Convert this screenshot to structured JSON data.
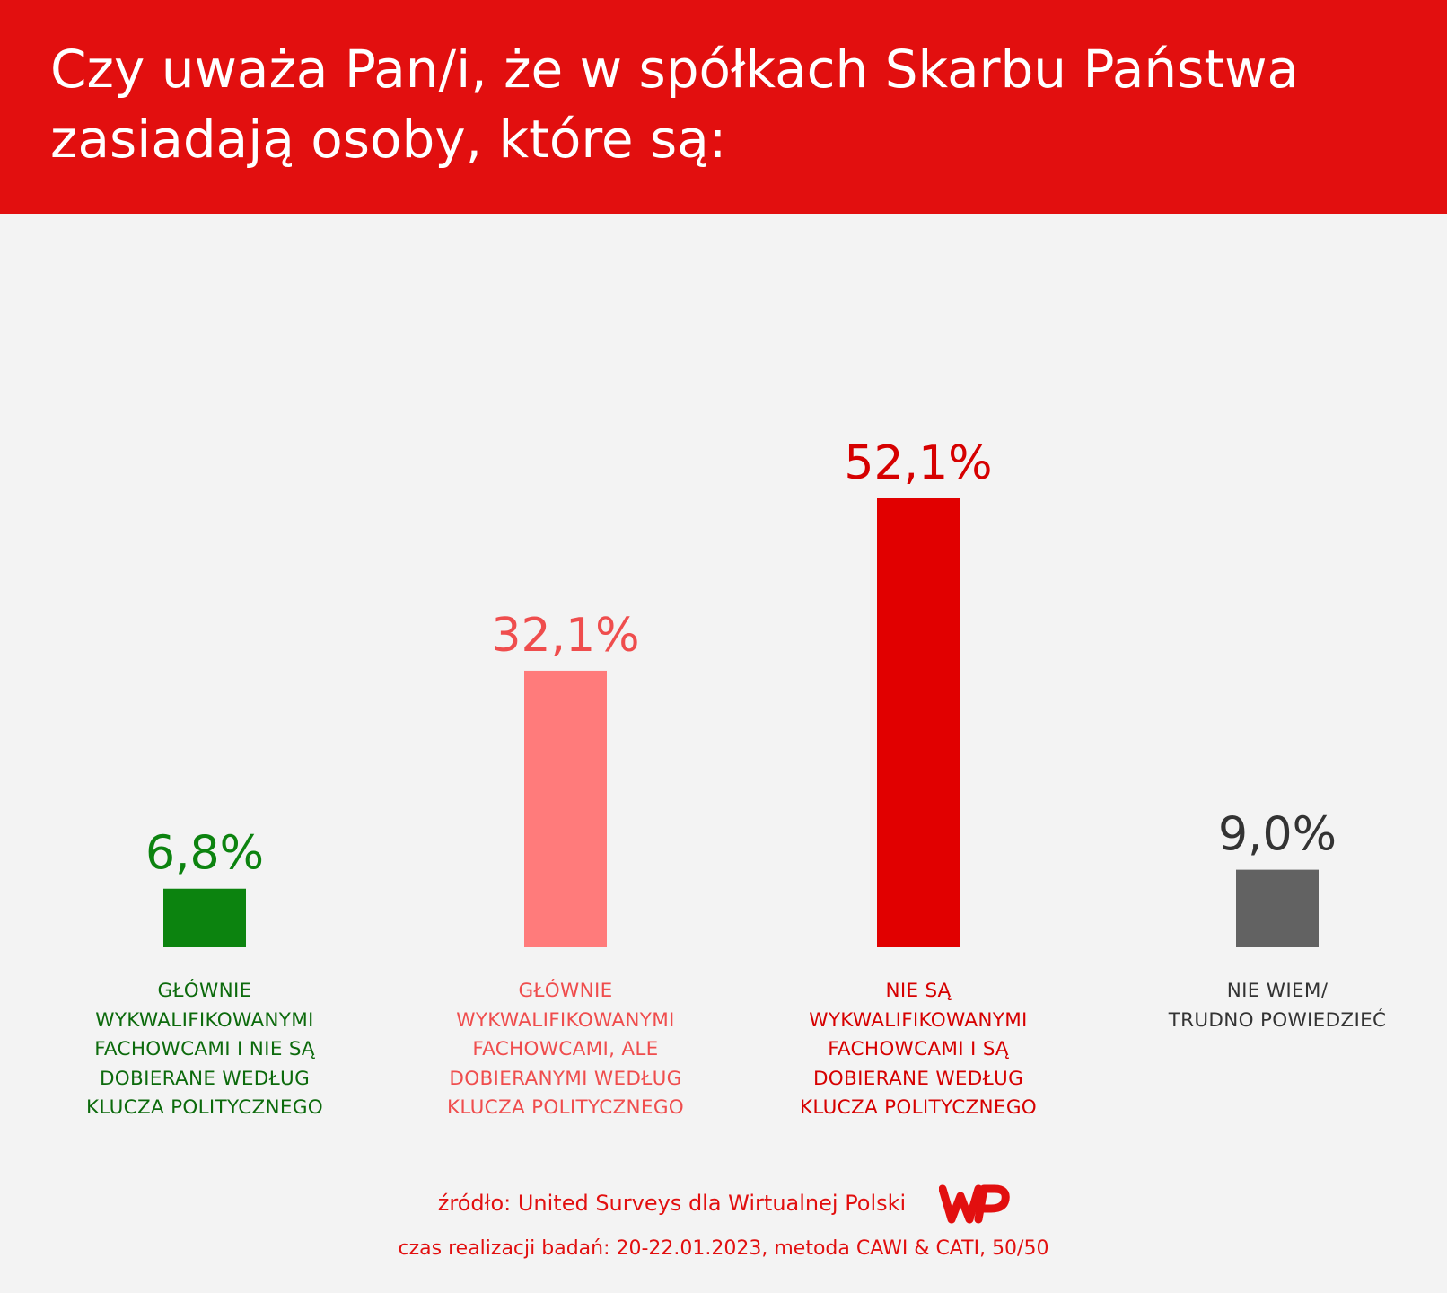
{
  "header": {
    "title_lines": [
      "Czy uważa Pan/i, że w spółkach Skarbu Państwa",
      "zasiadają osoby, które są:"
    ]
  },
  "chart_data": {
    "type": "bar",
    "categories": [
      [
        "GŁÓWNIE",
        "WYKWALIFIKOWANYMI",
        "FACHOWCAMI I NIE SĄ",
        "DOBIERANE WEDŁUG",
        "KLUCZA POLITYCZNEGO"
      ],
      [
        "GŁÓWNIE",
        "WYKWALIFIKOWANYMI",
        "FACHOWCAMI, ALE",
        "DOBIERANYMI WEDŁUG",
        "KLUCZA POLITYCZNEGO"
      ],
      [
        "NIE SĄ",
        "WYKWALIFIKOWANYMI",
        "FACHOWCAMI I SĄ",
        "DOBIERANE WEDŁUG",
        "KLUCZA POLITYCZNEGO"
      ],
      [
        "NIE WIEM/",
        "TRUDNO POWIEDZIEĆ"
      ]
    ],
    "values": [
      6.8,
      32.1,
      52.1,
      9.0
    ],
    "value_labels": [
      "6,8%",
      "32,1%",
      "52,1%",
      "9,0%"
    ],
    "bar_colors": [
      "#0c830f",
      "#ff7b7b",
      "#e10000",
      "#626262"
    ],
    "label_colors": [
      "#0c6a0c",
      "#ef4d4d",
      "#d60000",
      "#333333"
    ],
    "value_label_colors": [
      "#0c830f",
      "#ef4d4d",
      "#d60000",
      "#333333"
    ],
    "ylim": [
      0,
      52.1
    ],
    "grid": false,
    "legend": "none"
  },
  "footer": {
    "source": "źródło: United Surveys dla Wirtualnej Polski",
    "details": "czas realizacji badań: 20-22.01.2023, metoda CAWI & CATI, 50/50"
  },
  "logo": {
    "icon": "wp-logo-icon",
    "color": "#e20f0f"
  }
}
